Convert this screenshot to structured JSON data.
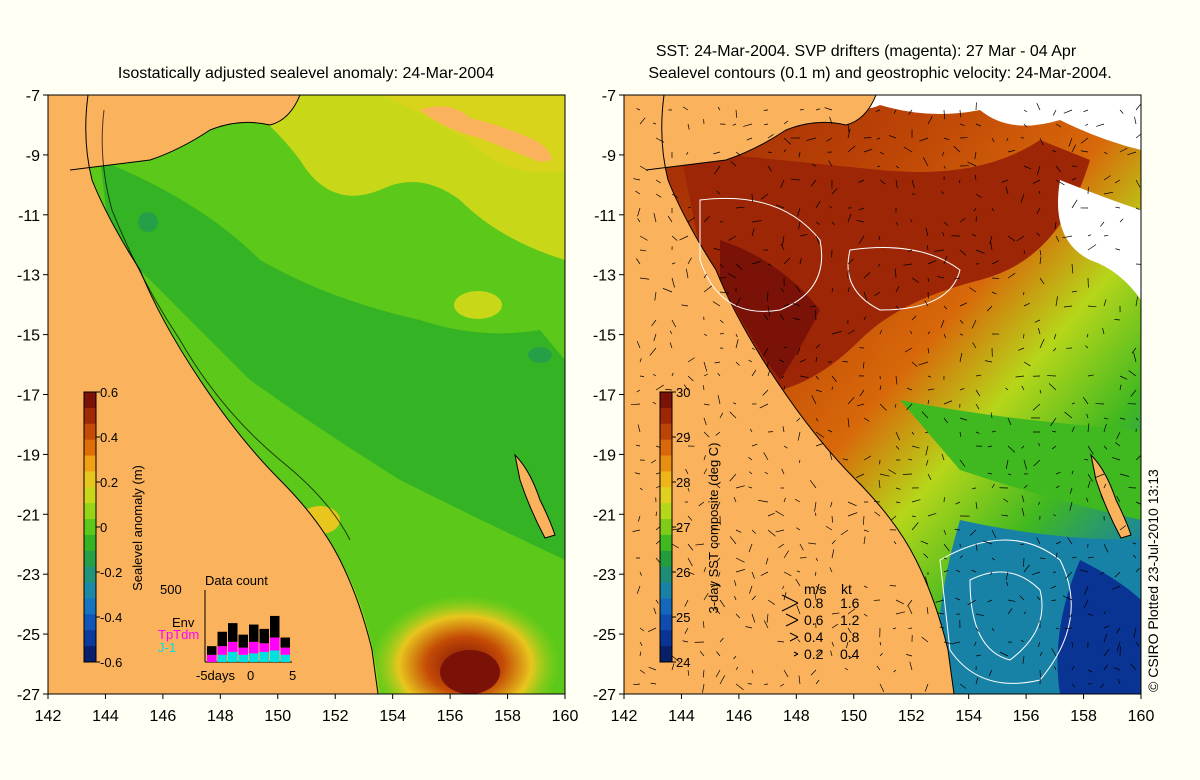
{
  "left_panel": {
    "title": "Isostatically adjusted sealevel anomaly: 24-Mar-2004",
    "colorbar": {
      "label": "Sealevel anomaly (m)",
      "ticks": [
        "0.6",
        "0.4",
        "0.2",
        "0",
        "-0.2",
        "-0.4",
        "-0.6"
      ],
      "colors": [
        "#7a1208",
        "#a02a06",
        "#c44a05",
        "#df6e06",
        "#f0a012",
        "#e8c61e",
        "#c8d818",
        "#96d416",
        "#5cc81a",
        "#34b424",
        "#26a048",
        "#20947a",
        "#1a88a6",
        "#1474c0",
        "#0f56b8",
        "#0a3a9c",
        "#081f6e"
      ]
    },
    "data_count": {
      "title": "Data count",
      "max_label": "500",
      "legend": [
        {
          "label": "Env",
          "color": "#000000"
        },
        {
          "label": "TpTdm",
          "color": "#ff00ff"
        },
        {
          "label": "J-1",
          "color": "#00e0e0"
        }
      ],
      "x_labels": [
        "-5days",
        "0",
        "5"
      ],
      "bars": [
        {
          "env": 0.12,
          "tp": 0.1,
          "j1": 0.0
        },
        {
          "env": 0.2,
          "tp": 0.12,
          "j1": 0.1
        },
        {
          "env": 0.26,
          "tp": 0.14,
          "j1": 0.14
        },
        {
          "env": 0.18,
          "tp": 0.1,
          "j1": 0.1
        },
        {
          "env": 0.24,
          "tp": 0.16,
          "j1": 0.12
        },
        {
          "env": 0.2,
          "tp": 0.12,
          "j1": 0.14
        },
        {
          "env": 0.3,
          "tp": 0.18,
          "j1": 0.16
        },
        {
          "env": 0.14,
          "tp": 0.1,
          "j1": 0.1
        }
      ]
    }
  },
  "right_panel": {
    "title_line1": "SST: 24-Mar-2004. SVP drifters (magenta): 27 Mar - 04 Apr",
    "title_line2": "Sealevel contours (0.1 m) and geostrophic velocity: 24-Mar-2004.",
    "colorbar": {
      "label": "3-day SST composite (deg C)",
      "ticks": [
        "30",
        "29",
        "28",
        "27",
        "26",
        "25",
        "24"
      ],
      "colors": [
        "#7a1208",
        "#9c2606",
        "#bc4406",
        "#d8680a",
        "#e88e10",
        "#eeb418",
        "#e2d020",
        "#b6d61a",
        "#7ecc18",
        "#40b820",
        "#249c3c",
        "#1e8c76",
        "#1882a6",
        "#1468bc",
        "#0e4cb0",
        "#0a3494",
        "#082066"
      ]
    },
    "velocity_legend": {
      "header_ms": "m/s",
      "header_kt": "kt",
      "rows": [
        {
          "ms": "0.8",
          "kt": "1.6"
        },
        {
          "ms": "0.6",
          "kt": "1.2"
        },
        {
          "ms": "0.4",
          "kt": "0.8"
        },
        {
          "ms": "0.2",
          "kt": "0.4"
        }
      ]
    }
  },
  "axes": {
    "x_ticks": [
      "142",
      "144",
      "146",
      "148",
      "150",
      "152",
      "154",
      "156",
      "158",
      "160"
    ],
    "y_ticks": [
      "-7",
      "-9",
      "-11",
      "-13",
      "-15",
      "-17",
      "-19",
      "-21",
      "-23",
      "-25",
      "-27"
    ]
  },
  "credit": "© CSIRO Plotted 23-Jul-2010 13:13",
  "colors": {
    "land": "#fbb25d",
    "background": "#fffff3",
    "cloud": "#ffffff"
  }
}
